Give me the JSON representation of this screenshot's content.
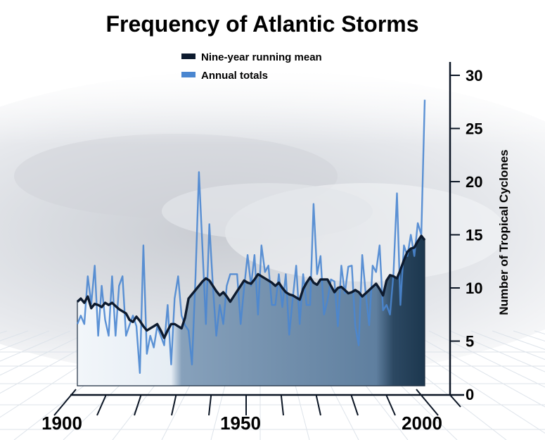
{
  "chart_data": {
    "type": "line",
    "title": "Frequency of Atlantic Storms",
    "xlabel": "",
    "ylabel": "Number of Tropical Cyclones",
    "x_start_year": 1905,
    "x_end_year": 2005,
    "xlim": [
      1900,
      2005
    ],
    "ylim": [
      0,
      30
    ],
    "y_axis_position": "right",
    "x_tick_labels": [
      "1900",
      "1950",
      "2000"
    ],
    "y_tick_labels": [
      "0",
      "5",
      "10",
      "15",
      "20",
      "25",
      "30"
    ],
    "legend_placement": "top-center",
    "grid": false,
    "series": [
      {
        "name": "Nine-year running mean",
        "color": "#0d1a2e",
        "style": "filled-area-line",
        "values": [
          8.7,
          9.0,
          8.6,
          9.2,
          8.1,
          8.5,
          8.4,
          8.2,
          8.6,
          8.4,
          8.6,
          8.3,
          8.0,
          7.8,
          7.6,
          7.0,
          6.8,
          7.3,
          6.9,
          6.4,
          6.0,
          6.2,
          6.4,
          6.6,
          6.0,
          5.3,
          6.0,
          6.6,
          6.6,
          6.4,
          6.2,
          7.2,
          9.0,
          9.4,
          9.8,
          10.2,
          10.6,
          10.9,
          10.7,
          10.2,
          9.7,
          9.3,
          9.6,
          9.2,
          8.7,
          9.2,
          9.7,
          10.2,
          10.7,
          10.5,
          10.4,
          10.8,
          11.3,
          11.1,
          10.9,
          10.7,
          10.5,
          10.2,
          10.5,
          10.0,
          9.6,
          9.4,
          9.3,
          9.1,
          8.9,
          9.9,
          10.5,
          11.0,
          10.5,
          10.3,
          10.8,
          10.8,
          10.8,
          10.2,
          9.6,
          10.0,
          10.1,
          9.8,
          9.5,
          9.6,
          9.8,
          9.6,
          9.2,
          9.5,
          9.8,
          10.1,
          10.4,
          9.9,
          9.3,
          10.7,
          11.2,
          11.1,
          10.9,
          11.7,
          12.6,
          13.4,
          13.7,
          13.8,
          14.4,
          14.9,
          14.5
        ]
      },
      {
        "name": "Annual totals",
        "color": "#4a86d0",
        "style": "line",
        "values": [
          6.6,
          7.4,
          6.6,
          11.1,
          8.5,
          12.1,
          5.5,
          10.2,
          7.0,
          5.5,
          11.1,
          5.5,
          10.2,
          11.1,
          5.5,
          6.5,
          7.4,
          6.4,
          2.0,
          14.0,
          3.8,
          5.5,
          4.4,
          6.4,
          5.5,
          4.6,
          8.4,
          2.8,
          9.0,
          11.1,
          7.4,
          6.5,
          6.0,
          2.8,
          11.0,
          20.9,
          13.9,
          6.6,
          16.0,
          10.2,
          5.5,
          8.4,
          6.6,
          10.2,
          11.3,
          11.3,
          11.3,
          6.6,
          10.0,
          13.1,
          10.2,
          13.1,
          7.5,
          14.0,
          11.5,
          12.1,
          8.4,
          8.4,
          11.3,
          8.2,
          11.3,
          5.6,
          9.0,
          12.1,
          6.6,
          11.3,
          8.4,
          8.4,
          17.9,
          11.3,
          13.0,
          7.5,
          8.8,
          10.8,
          10.6,
          6.4,
          12.1,
          9.5,
          12.0,
          12.1,
          6.4,
          4.6,
          13.1,
          9.5,
          6.5,
          12.1,
          11.5,
          14.0,
          7.9,
          8.4,
          7.5,
          11.3,
          18.9,
          8.4,
          14.0,
          13.0,
          15.0,
          13.0,
          16.1,
          15.0,
          27.7
        ]
      }
    ],
    "area_fill_colors": [
      "#eef3f8",
      "#7f9ab6",
      "#5f7f9f",
      "#1e3950"
    ]
  }
}
